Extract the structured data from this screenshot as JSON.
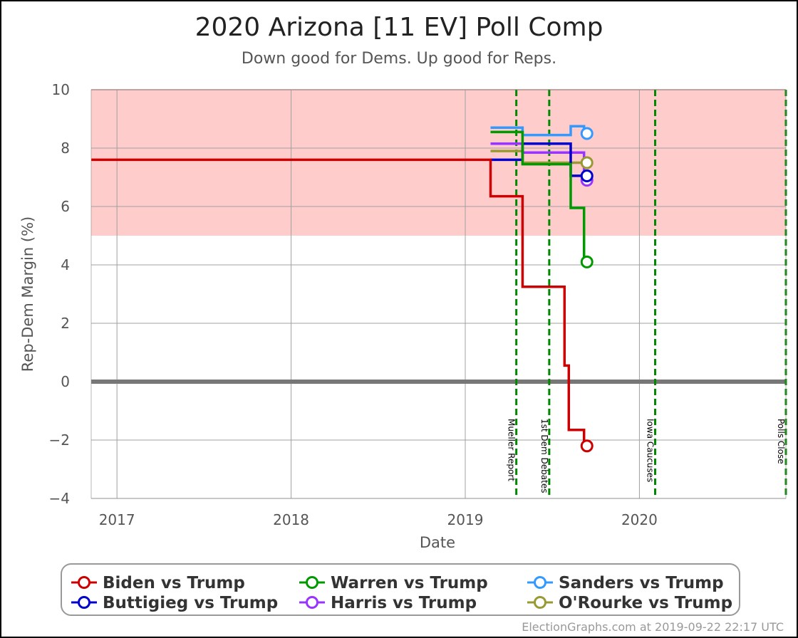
{
  "chart_data": {
    "type": "line",
    "title": "2020 Arizona [11 EV] Poll Comp",
    "subtitle": "Down good for Dems. Up good for Reps.",
    "xlabel": "Date",
    "ylabel": "Rep-Dem Margin (%)",
    "xlim": [
      "2016-11-08",
      "2020-11-03"
    ],
    "ylim": [
      -4,
      10
    ],
    "y_ticks": [
      10,
      8,
      6,
      4,
      2,
      0,
      -2,
      -4
    ],
    "y_tick_labels": [
      "10",
      "8",
      "6",
      "4",
      "2",
      "0",
      "−2",
      "−4"
    ],
    "x_ticks": [
      "2017-01-01",
      "2018-01-01",
      "2019-01-01",
      "2020-01-01"
    ],
    "x_tick_labels": [
      "2017",
      "2018",
      "2019",
      "2020"
    ],
    "grid": true,
    "shaded_band": {
      "from": 5,
      "to": 10,
      "color": "#ffcccc"
    },
    "zero_line": true,
    "events": [
      {
        "date": "2019-04-18",
        "label": "Mueller Report"
      },
      {
        "date": "2019-06-26",
        "label": "1st Dem Debates"
      },
      {
        "date": "2020-02-03",
        "label": "Iowa Caucuses"
      },
      {
        "date": "2020-11-03",
        "label": "Polls Close"
      }
    ],
    "series": [
      {
        "name": "Biden vs Trump",
        "color": "#cc0000",
        "x": [
          "2016-11-08",
          "2019-02-23",
          "2019-02-23",
          "2019-05-01",
          "2019-05-01",
          "2019-07-28",
          "2019-07-28",
          "2019-08-06",
          "2019-08-06",
          "2019-08-13",
          "2019-08-13",
          "2019-09-07",
          "2019-09-07",
          "2019-09-13"
        ],
        "y": [
          7.6,
          7.6,
          6.35,
          6.35,
          3.25,
          3.25,
          0.55,
          0.55,
          -1.65,
          -1.65,
          -1.65,
          -1.65,
          -2.2,
          -2.2
        ]
      },
      {
        "name": "Warren vs Trump",
        "color": "#009900",
        "x": [
          "2019-02-23",
          "2019-05-01",
          "2019-05-01",
          "2019-08-10",
          "2019-08-10",
          "2019-09-07",
          "2019-09-07",
          "2019-09-13"
        ],
        "y": [
          8.55,
          8.55,
          7.45,
          7.45,
          5.95,
          5.95,
          4.1,
          4.1
        ]
      },
      {
        "name": "Sanders vs Trump",
        "color": "#3399ff",
        "x": [
          "2019-02-23",
          "2019-05-01",
          "2019-05-01",
          "2019-08-10",
          "2019-08-10",
          "2019-09-07",
          "2019-09-07",
          "2019-09-13"
        ],
        "y": [
          8.7,
          8.7,
          8.45,
          8.45,
          8.75,
          8.75,
          8.5,
          8.5
        ]
      },
      {
        "name": "Buttigieg vs Trump",
        "color": "#0000cc",
        "x": [
          "2019-02-23",
          "2019-05-01",
          "2019-05-01",
          "2019-08-10",
          "2019-08-10",
          "2019-09-07",
          "2019-09-07",
          "2019-09-13"
        ],
        "y": [
          7.6,
          7.6,
          8.15,
          8.15,
          7.05,
          7.05,
          7.05,
          7.05
        ]
      },
      {
        "name": "Harris vs Trump",
        "color": "#9933ff",
        "x": [
          "2019-02-23",
          "2019-05-01",
          "2019-05-01",
          "2019-09-07",
          "2019-09-07",
          "2019-09-13"
        ],
        "y": [
          8.15,
          8.15,
          7.85,
          7.85,
          6.9,
          6.9
        ]
      },
      {
        "name": "O'Rourke vs Trump",
        "color": "#999933",
        "x": [
          "2019-02-23",
          "2019-05-01",
          "2019-05-01",
          "2019-09-07",
          "2019-09-07",
          "2019-09-13"
        ],
        "y": [
          7.9,
          7.9,
          7.5,
          7.5,
          7.5,
          7.5
        ]
      }
    ],
    "legend": {
      "placement": "bottom",
      "order": [
        "Biden vs Trump",
        "Warren vs Trump",
        "Sanders vs Trump",
        "Buttigieg vs Trump",
        "Harris vs Trump",
        "O'Rourke vs Trump"
      ]
    }
  },
  "footer": "ElectionGraphs.com at 2019-09-22 22:17 UTC"
}
